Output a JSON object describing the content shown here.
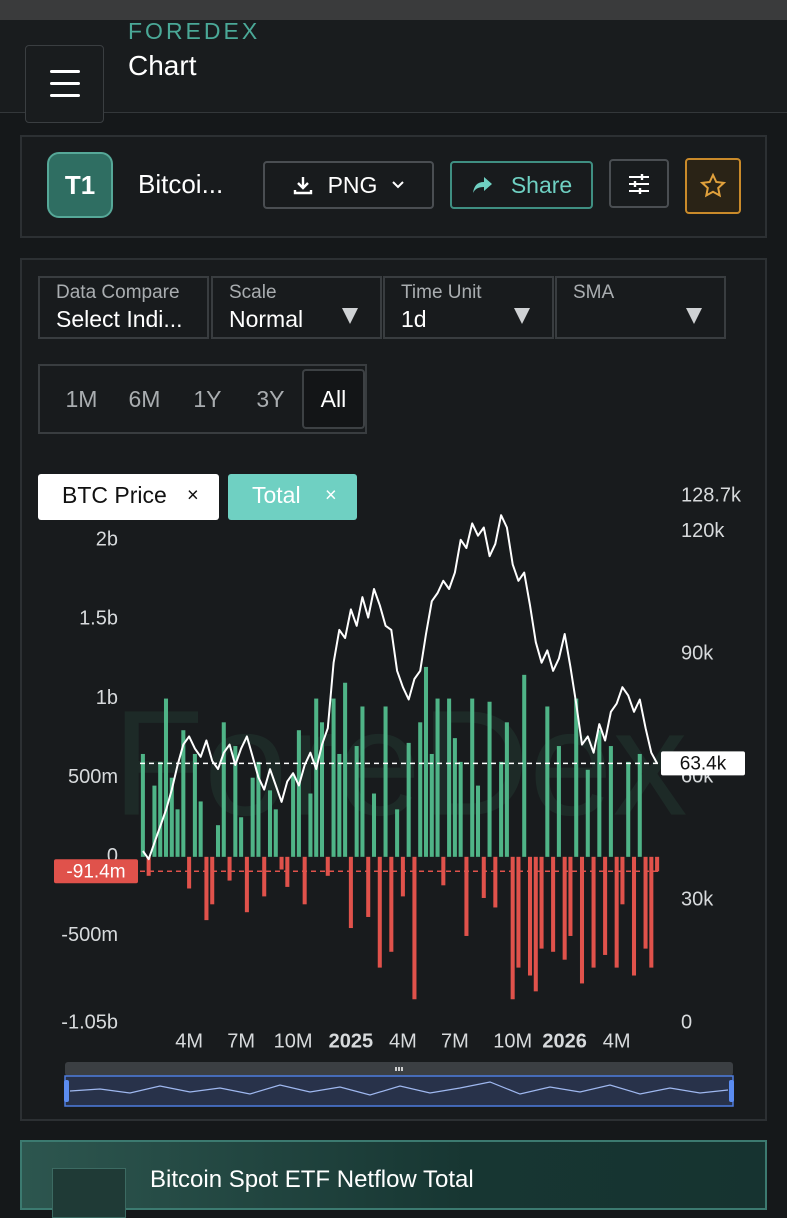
{
  "header": {
    "brand": "FOREDEX",
    "title": "Chart"
  },
  "toolbar": {
    "badge": "T1",
    "name": "Bitcoi...",
    "export": "PNG",
    "share": "Share"
  },
  "controls": {
    "selects": [
      {
        "label": "Data Compare",
        "value": "Select Indi..."
      },
      {
        "label": "Scale",
        "value": "Normal"
      },
      {
        "label": "Time Unit",
        "value": "1d"
      },
      {
        "label": "SMA"
      }
    ],
    "ranges": [
      "1M",
      "6M",
      "1Y",
      "3Y",
      "All"
    ],
    "active_range": "All"
  },
  "chart_data": {
    "type": "combo",
    "watermark": "ForeDex",
    "close_icon": "×",
    "categories": [
      null,
      null,
      null,
      null,
      null,
      null,
      null,
      null,
      "4M",
      null,
      null,
      null,
      null,
      null,
      null,
      null,
      null,
      "7M",
      null,
      null,
      null,
      null,
      null,
      null,
      null,
      null,
      "10M",
      null,
      null,
      null,
      null,
      null,
      null,
      null,
      null,
      null,
      "2025",
      null,
      null,
      null,
      null,
      null,
      null,
      null,
      null,
      "4M",
      null,
      null,
      null,
      null,
      null,
      null,
      null,
      null,
      "7M",
      null,
      null,
      null,
      null,
      null,
      null,
      null,
      null,
      null,
      "10M",
      null,
      null,
      null,
      null,
      null,
      null,
      null,
      null,
      "2026",
      null,
      null,
      null,
      null,
      null,
      null,
      null,
      null,
      "4M",
      null,
      null,
      null,
      null,
      null,
      null,
      null
    ],
    "series": [
      {
        "name": "BTC Price",
        "type": "line",
        "axis": "y2",
        "color": "#ffffff",
        "values": [
          42,
          40,
          44,
          48,
          52,
          57,
          63,
          68,
          70,
          67,
          65,
          69,
          64,
          62,
          66,
          68,
          63,
          67,
          70,
          65,
          60,
          57,
          62,
          58,
          54,
          59,
          61,
          58,
          63,
          66,
          62,
          68,
          72,
          88,
          96,
          94,
          101,
          97,
          104,
          99,
          106,
          102,
          97,
          96,
          86,
          82,
          79,
          84,
          86,
          95,
          103,
          105,
          108,
          106,
          110,
          118,
          116,
          122,
          119,
          121,
          114,
          117,
          124,
          121,
          112,
          108,
          110,
          102,
          93,
          88,
          91,
          86,
          89,
          95,
          87,
          78,
          68,
          70,
          66,
          73,
          69,
          76,
          78,
          82,
          80,
          76,
          79,
          72,
          66,
          63.4
        ]
      },
      {
        "name": "Total",
        "type": "bar",
        "axis": "y",
        "color": "#6fd0c2",
        "positive_color": "#4fb487",
        "negative_color": "#e0524b",
        "values": [
          650,
          -120,
          450,
          600,
          1000,
          500,
          300,
          800,
          -200,
          650,
          350,
          -400,
          -300,
          200,
          850,
          -150,
          700,
          250,
          -350,
          500,
          600,
          -250,
          420,
          300,
          -80,
          -190,
          520,
          800,
          -300,
          400,
          1000,
          850,
          -120,
          1000,
          650,
          1100,
          -450,
          700,
          950,
          -380,
          400,
          -700,
          950,
          -600,
          300,
          -250,
          720,
          -900,
          850,
          1200,
          650,
          1000,
          -180,
          1000,
          750,
          600,
          -500,
          1000,
          450,
          -260,
          980,
          -320,
          600,
          850,
          -900,
          -700,
          1150,
          -750,
          -850,
          -580,
          950,
          -600,
          700,
          -650,
          -500,
          1000,
          -800,
          550,
          -700,
          800,
          -620,
          700,
          -700,
          -300,
          600,
          -750,
          650,
          -580,
          -700,
          -91.4
        ]
      }
    ],
    "ylim": [
      -1050,
      2280
    ],
    "yticks": [
      {
        "value": -1050,
        "label": "-1.05b"
      },
      {
        "value": -500,
        "label": "-500m"
      },
      0,
      {
        "value": 500,
        "label": "500m"
      },
      {
        "value": 1000,
        "label": "1b"
      },
      {
        "value": 1500,
        "label": "1.5b"
      },
      {
        "value": 2000,
        "label": "2b"
      }
    ],
    "y2lim": [
      0,
      128.7
    ],
    "y2ticks": [
      0,
      {
        "value": 30,
        "label": "30k"
      },
      {
        "value": 60,
        "label": "60k"
      },
      {
        "value": 90,
        "label": "90k"
      },
      {
        "value": 120,
        "label": "120k"
      },
      {
        "value": 128.7,
        "label": "128.7k"
      }
    ],
    "markers": [
      {
        "axis": "y2",
        "value": 63.4,
        "label": "63.4k",
        "color": "#ffffff"
      },
      {
        "axis": "y",
        "value": -91.4,
        "label": "-91.4m",
        "color": "#e0524b"
      }
    ]
  },
  "footer": {
    "title": "Bitcoin Spot ETF Netflow Total"
  }
}
